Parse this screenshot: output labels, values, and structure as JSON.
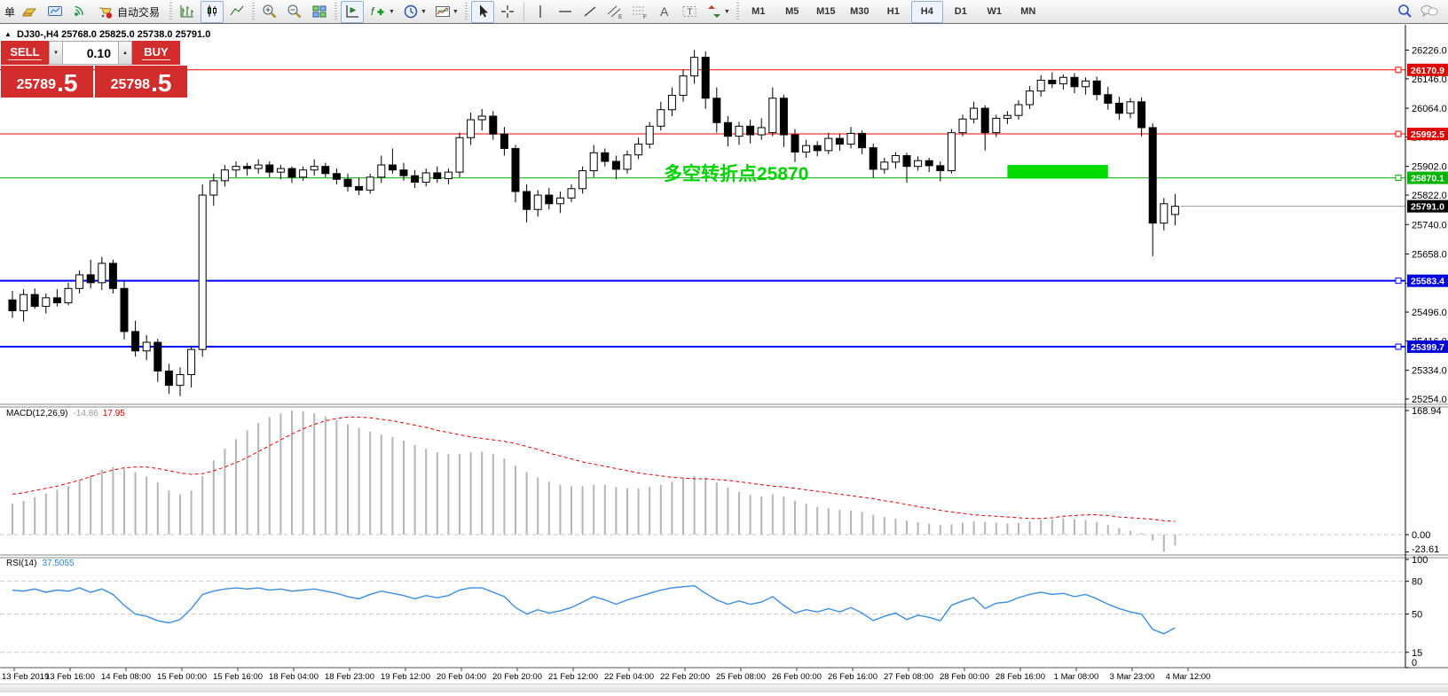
{
  "toolbar": {
    "new_order_partial": "单",
    "auto_trading": "自动交易",
    "timeframes": [
      "M1",
      "M5",
      "M15",
      "M30",
      "H1",
      "H4",
      "D1",
      "W1",
      "MN"
    ],
    "active_timeframe": "H4",
    "icon_glyphs": {
      "a": "A",
      "t": "T",
      "e": "E",
      "f": "F",
      "fx": "f",
      "dd": "▼"
    }
  },
  "chart": {
    "marker": "▲",
    "title_symbol": "DJ30-,H4",
    "title_ohlc": "25768.0 25825.0 25738.0 25791.0"
  },
  "trade_panel": {
    "sell_label": "SELL",
    "buy_label": "BUY",
    "volume": "0.10",
    "spinner_down": "▼",
    "spinner_up": "▲",
    "sell_price_main": "25789",
    "sell_price_big": ".5",
    "buy_price_main": "25798",
    "buy_price_big": ".5"
  },
  "annotation": {
    "text": "多空转折点25870",
    "color": "#00d300"
  },
  "indicators": {
    "macd": {
      "label": "MACD(12,26,9)",
      "value_main": "-14.86",
      "value_signal": "17.95",
      "axis": [
        168.94,
        0.0,
        -23.61
      ]
    },
    "rsi": {
      "label": "RSI(14)",
      "value": "37.5055",
      "axis": [
        100,
        80,
        50,
        15,
        0
      ],
      "levels": [
        80,
        50,
        15
      ]
    }
  },
  "price_axis": {
    "ticks": [
      26226.0,
      26146.0,
      26064.0,
      25984.0,
      25902.0,
      25822.0,
      25740.0,
      25658.0,
      25576.0,
      25496.0,
      25416.0,
      25334.0,
      25254.0
    ],
    "badges": [
      {
        "value": "26170.9",
        "price": 26170.9,
        "color": "#e00000"
      },
      {
        "value": "25992.5",
        "price": 25992.5,
        "color": "#e00000"
      },
      {
        "value": "25870.1",
        "price": 25870.1,
        "color": "#00b400"
      },
      {
        "value": "25791.0",
        "price": 25791.0,
        "color": "#000000"
      },
      {
        "value": "25583.4",
        "price": 25583.4,
        "color": "#0000dd"
      },
      {
        "value": "25399.7",
        "price": 25399.7,
        "color": "#0000dd"
      }
    ]
  },
  "time_axis": {
    "labels": [
      "13 Feb 2019",
      "13 Feb 16:00",
      "14 Feb 08:00",
      "15 Feb 00:00",
      "15 Feb 16:00",
      "18 Feb 04:00",
      "18 Feb 23:00",
      "19 Feb 12:00",
      "20 Feb 04:00",
      "20 Feb 20:00",
      "21 Feb 12:00",
      "22 Feb 04:00",
      "22 Feb 20:00",
      "25 Feb 08:00",
      "26 Feb 00:00",
      "26 Feb 16:00",
      "27 Feb 08:00",
      "28 Feb 00:00",
      "28 Feb 16:00",
      "1 Mar 08:00",
      "3 Mar 23:00",
      "4 Mar 12:00"
    ]
  },
  "chart_data": {
    "type": "candlestick",
    "symbol": "DJ30-",
    "timeframe": "H4",
    "price_ylim": [
      25254,
      26226
    ],
    "candles": [
      [
        25530,
        25555,
        25480,
        25500
      ],
      [
        25500,
        25560,
        25470,
        25545
      ],
      [
        25545,
        25562,
        25505,
        25512
      ],
      [
        25512,
        25548,
        25492,
        25536
      ],
      [
        25536,
        25560,
        25512,
        25522
      ],
      [
        25522,
        25578,
        25515,
        25562
      ],
      [
        25562,
        25612,
        25548,
        25600
      ],
      [
        25600,
        25642,
        25562,
        25578
      ],
      [
        25578,
        25650,
        25558,
        25632
      ],
      [
        25632,
        25642,
        25548,
        25562
      ],
      [
        25562,
        25585,
        25420,
        25442
      ],
      [
        25442,
        25472,
        25372,
        25388
      ],
      [
        25388,
        25432,
        25362,
        25412
      ],
      [
        25412,
        25422,
        25302,
        25332
      ],
      [
        25332,
        25352,
        25268,
        25292
      ],
      [
        25292,
        25342,
        25262,
        25322
      ],
      [
        25322,
        25402,
        25286,
        25392
      ],
      [
        25392,
        25852,
        25372,
        25822
      ],
      [
        25822,
        25882,
        25792,
        25862
      ],
      [
        25862,
        25906,
        25846,
        25892
      ],
      [
        25892,
        25916,
        25872,
        25902
      ],
      [
        25902,
        25912,
        25876,
        25896
      ],
      [
        25896,
        25922,
        25882,
        25906
      ],
      [
        25906,
        25916,
        25872,
        25886
      ],
      [
        25886,
        25906,
        25866,
        25896
      ],
      [
        25896,
        25902,
        25856,
        25872
      ],
      [
        25872,
        25902,
        25862,
        25892
      ],
      [
        25892,
        25922,
        25876,
        25902
      ],
      [
        25902,
        25912,
        25872,
        25882
      ],
      [
        25882,
        25896,
        25852,
        25866
      ],
      [
        25866,
        25882,
        25832,
        25846
      ],
      [
        25846,
        25872,
        25822,
        25836
      ],
      [
        25836,
        25882,
        25826,
        25872
      ],
      [
        25872,
        25932,
        25856,
        25906
      ],
      [
        25906,
        25952,
        25882,
        25892
      ],
      [
        25892,
        25912,
        25862,
        25876
      ],
      [
        25876,
        25892,
        25842,
        25858
      ],
      [
        25858,
        25896,
        25846,
        25884
      ],
      [
        25884,
        25902,
        25856,
        25868
      ],
      [
        25868,
        25896,
        25852,
        25886
      ],
      [
        25886,
        25996,
        25872,
        25982
      ],
      [
        25982,
        26052,
        25962,
        26032
      ],
      [
        26032,
        26062,
        26002,
        26042
      ],
      [
        26042,
        26056,
        25976,
        25992
      ],
      [
        25992,
        26012,
        25932,
        25952
      ],
      [
        25952,
        25962,
        25802,
        25832
      ],
      [
        25832,
        25852,
        25746,
        25782
      ],
      [
        25782,
        25836,
        25762,
        25822
      ],
      [
        25822,
        25842,
        25782,
        25798
      ],
      [
        25798,
        25832,
        25772,
        25814
      ],
      [
        25814,
        25852,
        25802,
        25840
      ],
      [
        25840,
        25902,
        25826,
        25890
      ],
      [
        25890,
        25962,
        25872,
        25940
      ],
      [
        25940,
        25952,
        25902,
        25916
      ],
      [
        25916,
        25932,
        25866,
        25894
      ],
      [
        25894,
        25946,
        25882,
        25934
      ],
      [
        25934,
        25982,
        25922,
        25964
      ],
      [
        25964,
        26026,
        25952,
        26014
      ],
      [
        26014,
        26082,
        26002,
        26060
      ],
      [
        26060,
        26122,
        26042,
        26100
      ],
      [
        26100,
        26172,
        26082,
        26154
      ],
      [
        26154,
        26226,
        26132,
        26206
      ],
      [
        26206,
        26222,
        26062,
        26092
      ],
      [
        26092,
        26122,
        25996,
        26024
      ],
      [
        26024,
        26042,
        25958,
        25986
      ],
      [
        25986,
        26026,
        25962,
        26014
      ],
      [
        26014,
        26032,
        25966,
        25990
      ],
      [
        25990,
        26036,
        25976,
        26010
      ],
      [
        25996,
        26122,
        25986,
        26092
      ],
      [
        26092,
        26102,
        25956,
        25990
      ],
      [
        25990,
        26006,
        25914,
        25942
      ],
      [
        25942,
        25976,
        25926,
        25960
      ],
      [
        25960,
        25972,
        25930,
        25946
      ],
      [
        25946,
        25996,
        25936,
        25980
      ],
      [
        25980,
        25992,
        25946,
        25964
      ],
      [
        25964,
        26012,
        25952,
        25994
      ],
      [
        25994,
        26002,
        25936,
        25954
      ],
      [
        25954,
        25966,
        25870,
        25894
      ],
      [
        25894,
        25926,
        25882,
        25914
      ],
      [
        25914,
        25942,
        25896,
        25932
      ],
      [
        25932,
        25940,
        25856,
        25902
      ],
      [
        25902,
        25930,
        25890,
        25918
      ],
      [
        25918,
        25926,
        25886,
        25904
      ],
      [
        25904,
        25916,
        25860,
        25890
      ],
      [
        25890,
        26006,
        25882,
        25996
      ],
      [
        25996,
        26046,
        25986,
        26034
      ],
      [
        26034,
        26082,
        26022,
        26064
      ],
      [
        26064,
        26072,
        25946,
        25996
      ],
      [
        25996,
        26046,
        25984,
        26036
      ],
      [
        26036,
        26056,
        26020,
        26044
      ],
      [
        26044,
        26086,
        26032,
        26074
      ],
      [
        26074,
        26126,
        26062,
        26112
      ],
      [
        26112,
        26156,
        26096,
        26142
      ],
      [
        26142,
        26164,
        26120,
        26132
      ],
      [
        26132,
        26158,
        26116,
        26150
      ],
      [
        26150,
        26162,
        26106,
        26124
      ],
      [
        26124,
        26150,
        26102,
        26140
      ],
      [
        26140,
        26152,
        26086,
        26102
      ],
      [
        26102,
        26124,
        26060,
        26078
      ],
      [
        26078,
        26096,
        26032,
        26050
      ],
      [
        26050,
        26092,
        26036,
        26082
      ],
      [
        26082,
        26094,
        25986,
        26010
      ],
      [
        26010,
        26022,
        25652,
        25744
      ],
      [
        25744,
        25814,
        25724,
        25798
      ],
      [
        25768,
        25825,
        25738,
        25791
      ]
    ],
    "hlines": [
      {
        "price": 26170.9,
        "color": "#ff0000",
        "width": 1
      },
      {
        "price": 25992.5,
        "color": "#ff0000",
        "width": 1
      },
      {
        "price": 25870.1,
        "color": "#00b400",
        "width": 1
      },
      {
        "price": 25583.4,
        "color": "#0000ff",
        "width": 2
      },
      {
        "price": 25399.7,
        "color": "#0000ff",
        "width": 2
      }
    ],
    "current_price": 25791.0,
    "rectangle": {
      "from_index": 89,
      "to_index": 98,
      "price_top": 25906,
      "price_bottom": 25868,
      "color": "#00dc00"
    },
    "macd": {
      "ylim": [
        -23.61,
        168.94
      ],
      "main": [
        42,
        46,
        51,
        56,
        61,
        66,
        73,
        81,
        88,
        92,
        90,
        85,
        79,
        71,
        60,
        55,
        60,
        80,
        101,
        117,
        130,
        142,
        152,
        160,
        165,
        168.94,
        168,
        165,
        161,
        156,
        150,
        145,
        140,
        136,
        133,
        128,
        122,
        117,
        112,
        110,
        110,
        112,
        113,
        110,
        104,
        94,
        85,
        78,
        72,
        68,
        66,
        66,
        68,
        68,
        65,
        63,
        63,
        65,
        68,
        72,
        76,
        80,
        78,
        71,
        64,
        58,
        54,
        52,
        55,
        52,
        46,
        42,
        38,
        36,
        34,
        33,
        31,
        27,
        24,
        22,
        19,
        17,
        15,
        13,
        14,
        16,
        18,
        17,
        16,
        15,
        16,
        18,
        20,
        21,
        22,
        21,
        20,
        17,
        13,
        9,
        5,
        2,
        -8,
        -23.61,
        -14.86
      ],
      "signal": [
        55,
        57,
        60,
        63,
        66,
        70,
        74,
        79,
        84,
        88,
        91,
        92,
        92,
        90,
        87,
        84,
        82,
        83,
        87,
        92,
        98,
        105,
        113,
        121,
        129,
        137,
        144,
        150,
        155,
        158,
        160,
        160,
        159,
        157,
        155,
        152,
        149,
        146,
        142,
        139,
        136,
        133,
        131,
        129,
        127,
        124,
        120,
        116,
        111,
        107,
        103,
        99,
        96,
        93,
        90,
        87,
        84,
        82,
        80,
        78,
        77,
        76,
        76,
        75,
        74,
        72,
        70,
        68,
        66,
        65,
        63,
        61,
        59,
        57,
        55,
        53,
        51,
        49,
        46,
        44,
        41,
        38,
        36,
        33,
        31,
        29,
        27,
        26,
        25,
        24,
        23,
        22,
        22,
        23,
        25,
        26,
        27,
        27,
        26,
        24,
        23,
        22,
        21,
        19,
        17.95
      ]
    },
    "rsi": {
      "ylim": [
        0,
        100
      ],
      "values": [
        72,
        71,
        73,
        70,
        72,
        71,
        74,
        70,
        73,
        68,
        58,
        50,
        48,
        44,
        42,
        45,
        55,
        68,
        71,
        73,
        74,
        73,
        74,
        72,
        73,
        71,
        72,
        73,
        71,
        69,
        66,
        64,
        68,
        71,
        69,
        67,
        64,
        67,
        65,
        67,
        72,
        74,
        74,
        70,
        66,
        56,
        50,
        54,
        51,
        53,
        56,
        61,
        66,
        63,
        59,
        63,
        66,
        69,
        72,
        74,
        75,
        76,
        69,
        63,
        59,
        62,
        59,
        61,
        66,
        58,
        51,
        54,
        52,
        55,
        52,
        56,
        51,
        44,
        48,
        51,
        45,
        49,
        47,
        44,
        58,
        62,
        65,
        55,
        60,
        61,
        65,
        68,
        70,
        68,
        69,
        66,
        68,
        64,
        59,
        55,
        52,
        50,
        36,
        32,
        37.5
      ]
    }
  }
}
